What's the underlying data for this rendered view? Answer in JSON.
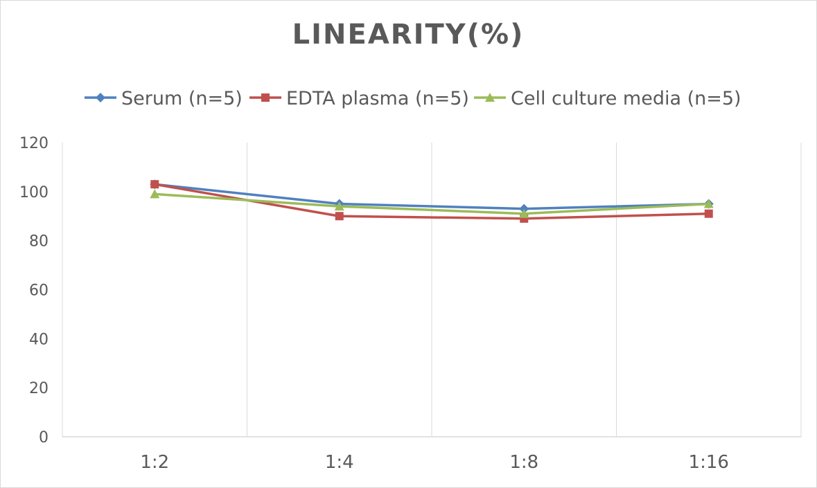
{
  "chart_data": {
    "type": "line",
    "title": "LINEARITY(%)",
    "xlabel": "",
    "ylabel": "",
    "categories": [
      "1:2",
      "1:4",
      "1:8",
      "1:16"
    ],
    "ylim": [
      0,
      120
    ],
    "yticks": [
      0,
      20,
      40,
      60,
      80,
      100,
      120
    ],
    "grid": "vertical",
    "legend": "top",
    "series": [
      {
        "name": "Serum (n=5)",
        "color": "#4f81bd",
        "marker": "diamond",
        "values": [
          103,
          95,
          93,
          95
        ]
      },
      {
        "name": "EDTA plasma (n=5)",
        "color": "#c0504d",
        "marker": "square",
        "values": [
          103,
          90,
          89,
          91
        ]
      },
      {
        "name": "Cell culture media (n=5)",
        "color": "#9bbb59",
        "marker": "triangle",
        "values": [
          99,
          94,
          91,
          95
        ]
      }
    ]
  }
}
